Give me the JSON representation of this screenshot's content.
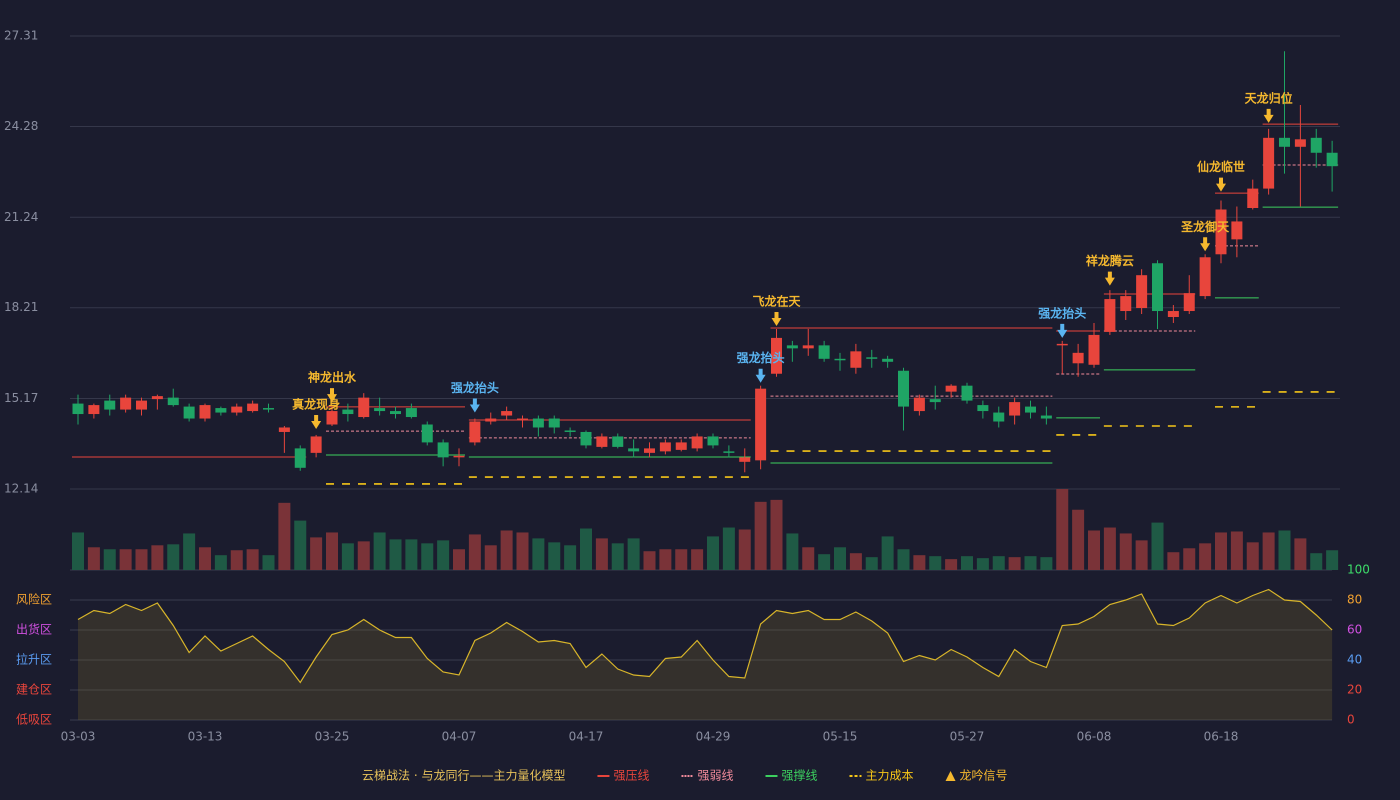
{
  "chart_data": {
    "type": "candlestick",
    "categories": [
      "03-03",
      null,
      null,
      null,
      null,
      null,
      null,
      null,
      "03-13",
      null,
      null,
      null,
      null,
      null,
      null,
      null,
      "03-25",
      null,
      null,
      null,
      null,
      null,
      null,
      null,
      "04-07",
      null,
      null,
      null,
      null,
      null,
      null,
      null,
      "04-17",
      null,
      null,
      null,
      null,
      null,
      null,
      null,
      "04-29",
      null,
      null,
      null,
      null,
      null,
      null,
      null,
      "05-15",
      null,
      null,
      null,
      null,
      null,
      null,
      null,
      "05-27",
      null,
      null,
      null,
      null,
      null,
      null,
      null,
      "06-08",
      null,
      null,
      null,
      null,
      null,
      null,
      null,
      "06-18",
      null,
      null,
      null,
      null,
      null,
      null,
      null
    ],
    "ylim": [
      12.14,
      27.31
    ],
    "yticks": [
      12.14,
      15.17,
      18.21,
      21.24,
      24.28,
      27.31
    ],
    "grid": true,
    "up_color": "#e8453c",
    "down_color": "#1fa565",
    "open": [
      15.0,
      14.65,
      15.1,
      14.8,
      14.8,
      15.15,
      15.2,
      14.9,
      14.5,
      14.85,
      14.7,
      14.75,
      14.85,
      14.05,
      13.5,
      13.35,
      14.3,
      14.8,
      14.55,
      14.85,
      14.75,
      14.85,
      14.3,
      13.7,
      13.2,
      13.7,
      14.4,
      14.6,
      14.45,
      14.5,
      14.5,
      14.1,
      14.05,
      13.55,
      13.9,
      13.5,
      13.35,
      13.4,
      13.45,
      13.5,
      13.9,
      13.4,
      13.05,
      13.1,
      16.0,
      16.95,
      16.85,
      16.95,
      16.5,
      16.2,
      16.55,
      16.5,
      16.1,
      14.75,
      15.15,
      15.4,
      15.6,
      14.95,
      14.7,
      14.6,
      14.9,
      14.6,
      16.95,
      16.35,
      16.3,
      17.4,
      18.1,
      18.2,
      19.7,
      17.9,
      18.1,
      18.6,
      20.0,
      20.5,
      21.55,
      22.2,
      23.9,
      23.6,
      23.9,
      23.4
    ],
    "close": [
      14.65,
      14.95,
      14.8,
      15.2,
      15.1,
      15.25,
      14.95,
      14.5,
      14.95,
      14.7,
      14.9,
      15.0,
      14.8,
      14.2,
      12.85,
      13.9,
      14.75,
      14.65,
      15.2,
      14.75,
      14.65,
      14.55,
      13.7,
      13.2,
      13.25,
      14.4,
      14.5,
      14.75,
      14.5,
      14.2,
      14.2,
      14.05,
      13.6,
      13.9,
      13.55,
      13.4,
      13.5,
      13.7,
      13.7,
      13.9,
      13.6,
      13.35,
      13.2,
      15.5,
      17.2,
      16.85,
      16.95,
      16.5,
      16.45,
      16.75,
      16.5,
      16.4,
      14.9,
      15.2,
      15.05,
      15.6,
      15.1,
      14.75,
      14.4,
      15.05,
      14.7,
      14.5,
      17.0,
      16.7,
      17.3,
      18.5,
      18.6,
      19.3,
      18.1,
      18.1,
      18.7,
      19.9,
      21.5,
      21.1,
      22.2,
      23.9,
      23.6,
      23.85,
      23.4,
      22.95
    ],
    "high": [
      15.3,
      15.0,
      15.3,
      15.3,
      15.2,
      15.3,
      15.5,
      15.0,
      15.0,
      14.9,
      15.0,
      15.1,
      15.0,
      14.25,
      13.6,
      13.95,
      14.9,
      15.0,
      15.35,
      15.2,
      14.9,
      15.0,
      14.4,
      13.8,
      13.5,
      14.5,
      14.7,
      14.9,
      14.6,
      14.6,
      14.6,
      14.2,
      14.1,
      14.0,
      14.0,
      13.8,
      13.7,
      13.8,
      13.8,
      14.0,
      14.0,
      13.6,
      13.5,
      15.6,
      17.5,
      17.1,
      17.5,
      17.1,
      16.7,
      17.0,
      16.8,
      16.6,
      16.2,
      15.3,
      15.6,
      15.65,
      15.7,
      15.1,
      14.9,
      15.2,
      15.1,
      14.9,
      17.1,
      17.0,
      17.7,
      18.8,
      18.8,
      19.5,
      19.8,
      18.3,
      19.3,
      20.0,
      21.8,
      21.6,
      22.5,
      24.2,
      26.8,
      25.0,
      24.2,
      23.8
    ],
    "low": [
      14.3,
      14.5,
      14.6,
      14.7,
      14.6,
      14.8,
      14.9,
      14.4,
      14.4,
      14.6,
      14.6,
      14.7,
      14.7,
      13.35,
      12.75,
      13.2,
      14.25,
      14.4,
      14.5,
      14.6,
      14.5,
      14.5,
      13.6,
      12.9,
      12.9,
      13.6,
      14.3,
      14.45,
      14.2,
      13.9,
      14.0,
      13.9,
      13.5,
      13.5,
      13.5,
      13.2,
      13.2,
      13.3,
      13.4,
      13.4,
      13.5,
      13.2,
      12.7,
      12.8,
      15.9,
      16.4,
      16.6,
      16.4,
      16.1,
      16.0,
      16.2,
      16.2,
      14.1,
      14.6,
      14.8,
      15.2,
      15.0,
      14.5,
      14.2,
      14.3,
      14.5,
      14.3,
      16.0,
      15.9,
      16.2,
      17.3,
      17.8,
      18.0,
      17.5,
      17.7,
      18.0,
      18.5,
      19.7,
      19.9,
      21.5,
      22.0,
      22.7,
      21.6,
      22.9,
      22.1
    ],
    "volume": [
      38,
      23,
      21,
      21,
      21,
      25,
      26,
      37,
      23,
      15,
      20,
      21,
      15,
      68,
      50,
      33,
      38,
      27,
      29,
      38,
      31,
      31,
      27,
      30,
      21,
      36,
      25,
      40,
      38,
      32,
      28,
      25,
      42,
      32,
      27,
      32,
      19,
      21,
      21,
      21,
      34,
      43,
      41,
      69,
      71,
      37,
      23,
      16,
      23,
      17,
      13,
      34,
      21,
      15,
      14,
      11,
      14,
      12,
      14,
      13,
      14,
      13,
      82,
      61,
      40,
      43,
      37,
      30,
      48,
      18,
      22,
      27,
      38,
      39,
      28,
      38,
      40,
      32,
      17,
      20
    ],
    "lines": [
      {
        "name": "强压线",
        "color": "#e8453c",
        "line_style": "solid",
        "segments": [
          {
            "start": 0,
            "end": 14,
            "value": 13.21
          },
          {
            "start": 16,
            "end": 24,
            "value": 14.89
          },
          {
            "start": 25,
            "end": 42,
            "value": 14.45
          },
          {
            "start": 44,
            "end": 61,
            "value": 17.53
          },
          {
            "start": 62,
            "end": 64,
            "value": 17.43
          },
          {
            "start": 65,
            "end": 70,
            "value": 18.67
          },
          {
            "start": 72,
            "end": 74,
            "value": 22.05
          },
          {
            "start": 75,
            "end": 79,
            "value": 24.36
          }
        ]
      },
      {
        "name": "强弱线",
        "color": "#f08a9a",
        "line_style": "dotted",
        "segments": [
          {
            "start": 16,
            "end": 24,
            "value": 14.08
          },
          {
            "start": 25,
            "end": 42,
            "value": 13.85
          },
          {
            "start": 44,
            "end": 61,
            "value": 15.25
          },
          {
            "start": 62,
            "end": 64,
            "value": 15.99
          },
          {
            "start": 65,
            "end": 70,
            "value": 17.43
          },
          {
            "start": 72,
            "end": 74,
            "value": 20.28
          },
          {
            "start": 75,
            "end": 79,
            "value": 22.99
          }
        ]
      },
      {
        "name": "强撑线",
        "color": "#3ccf5f",
        "line_style": "solid",
        "segments": [
          {
            "start": 16,
            "end": 24,
            "value": 13.28
          },
          {
            "start": 25,
            "end": 42,
            "value": 13.21
          },
          {
            "start": 44,
            "end": 61,
            "value": 13.01
          },
          {
            "start": 62,
            "end": 64,
            "value": 14.52
          },
          {
            "start": 65,
            "end": 70,
            "value": 16.13
          },
          {
            "start": 72,
            "end": 74,
            "value": 18.54
          },
          {
            "start": 75,
            "end": 79,
            "value": 21.58
          }
        ]
      },
      {
        "name": "主力成本",
        "color": "#f5c518",
        "line_style": "dashed",
        "segments": [
          {
            "start": 16,
            "end": 24,
            "value": 12.31
          },
          {
            "start": 25,
            "end": 42,
            "value": 12.54
          },
          {
            "start": 44,
            "end": 61,
            "value": 13.41
          },
          {
            "start": 62,
            "end": 64,
            "value": 13.95
          },
          {
            "start": 65,
            "end": 70,
            "value": 14.25
          },
          {
            "start": 72,
            "end": 74,
            "value": 14.89
          },
          {
            "start": 75,
            "end": 79,
            "value": 15.39
          }
        ]
      }
    ],
    "signals": [
      {
        "label": "真龙现身",
        "index": 15,
        "value": 14.15,
        "color": "#f5b82e"
      },
      {
        "label": "神龙出水",
        "index": 16,
        "value": 15.05,
        "color": "#f5b82e"
      },
      {
        "label": "强龙抬头",
        "index": 25,
        "value": 14.7,
        "color": "#5ab4f0"
      },
      {
        "label": "强龙抬头",
        "index": 43,
        "value": 15.7,
        "color": "#5ab4f0"
      },
      {
        "label": "飞龙在天",
        "index": 44,
        "value": 17.6,
        "color": "#f5b82e"
      },
      {
        "label": "强龙抬头",
        "index": 62,
        "value": 17.2,
        "color": "#5ab4f0"
      },
      {
        "label": "祥龙腾云",
        "index": 65,
        "value": 18.95,
        "color": "#f5b82e"
      },
      {
        "label": "圣龙御天",
        "index": 71,
        "value": 20.1,
        "color": "#f5b82e"
      },
      {
        "label": "仙龙临世",
        "index": 72,
        "value": 22.1,
        "color": "#f5b82e"
      },
      {
        "label": "天龙归位",
        "index": 75,
        "value": 24.4,
        "color": "#f5b82e"
      }
    ],
    "legend_title": "云梯战法 · 与龙同行——主力量化模型",
    "signal_legend": {
      "name": "龙吟信号",
      "color": "#f5b82e"
    },
    "oscillator": {
      "values": [
        67,
        73,
        71,
        77,
        73,
        78,
        63,
        45,
        56,
        46,
        51,
        56,
        47,
        39,
        25,
        42,
        57,
        60,
        67,
        60,
        55,
        55,
        41,
        32,
        30,
        53,
        58,
        65,
        59,
        52,
        53,
        51,
        35,
        44,
        34,
        30,
        29,
        41,
        42,
        53,
        40,
        29,
        28,
        64,
        73,
        71,
        73,
        67,
        67,
        72,
        66,
        58,
        39,
        43,
        40,
        47,
        42,
        35,
        29,
        47,
        39,
        35,
        63,
        64,
        69,
        77,
        80,
        84,
        64,
        63,
        68,
        78,
        83,
        78,
        83,
        87,
        80,
        79,
        70,
        60
      ],
      "color": "#d8b52a",
      "ylim": [
        0,
        100
      ],
      "yticks": [
        0,
        20,
        40,
        60,
        80,
        100
      ],
      "tick_colors": [
        "#e8453c",
        "#e8453c",
        "#5a9bf0",
        "#d050e0",
        "#f0a030",
        "#3ddc6a"
      ],
      "zones": [
        {
          "label": "风险区",
          "value": 80,
          "color": "#f0a030"
        },
        {
          "label": "出货区",
          "value": 60,
          "color": "#d050e0"
        },
        {
          "label": "拉升区",
          "value": 40,
          "color": "#5a9bf0"
        },
        {
          "label": "建仓区",
          "value": 20,
          "color": "#e8453c"
        },
        {
          "label": "低吸区",
          "value": 0,
          "color": "#e8453c"
        }
      ]
    }
  }
}
